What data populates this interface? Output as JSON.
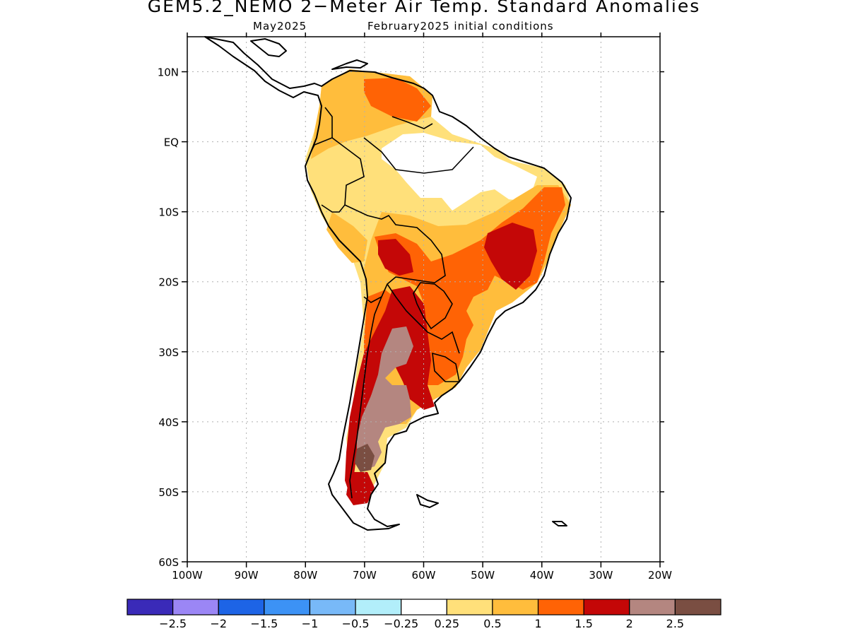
{
  "title": "GEM5.2_NEMO 2−Meter Air Temp. Standard Anomalies",
  "subtitle_month": "May2025",
  "subtitle_init": "February2025 initial conditions",
  "map": {
    "lon_range": [
      -100,
      -20
    ],
    "lat_range": [
      -60,
      15
    ],
    "lat_ticks": [
      {
        "value": 10,
        "label": "10N"
      },
      {
        "value": 0,
        "label": "EQ"
      },
      {
        "value": -10,
        "label": "10S"
      },
      {
        "value": -20,
        "label": "20S"
      },
      {
        "value": -30,
        "label": "30S"
      },
      {
        "value": -40,
        "label": "40S"
      },
      {
        "value": -50,
        "label": "50S"
      },
      {
        "value": -60,
        "label": "60S"
      }
    ],
    "lon_ticks": [
      {
        "value": -100,
        "label": "100W"
      },
      {
        "value": -90,
        "label": "90W"
      },
      {
        "value": -80,
        "label": "80W"
      },
      {
        "value": -70,
        "label": "70W"
      },
      {
        "value": -60,
        "label": "60W"
      },
      {
        "value": -50,
        "label": "50W"
      },
      {
        "value": -40,
        "label": "40W"
      },
      {
        "value": -30,
        "label": "30W"
      },
      {
        "value": -20,
        "label": "20W"
      }
    ],
    "grid": "dotted"
  },
  "colorbar": {
    "colors": [
      "#3a2ab8",
      "#9b86f5",
      "#1d64e6",
      "#3c92f5",
      "#78b9f8",
      "#b2eefa",
      "#ffffff",
      "#ffe07a",
      "#ffbd3c",
      "#ff6305",
      "#c40707",
      "#b48680",
      "#7a4e42"
    ],
    "labels": [
      "−2.5",
      "−2",
      "−1.5",
      "−1",
      "−0.5",
      "−0.25",
      "0.25",
      "0.5",
      "1",
      "1.5",
      "2",
      "2.5"
    ]
  }
}
